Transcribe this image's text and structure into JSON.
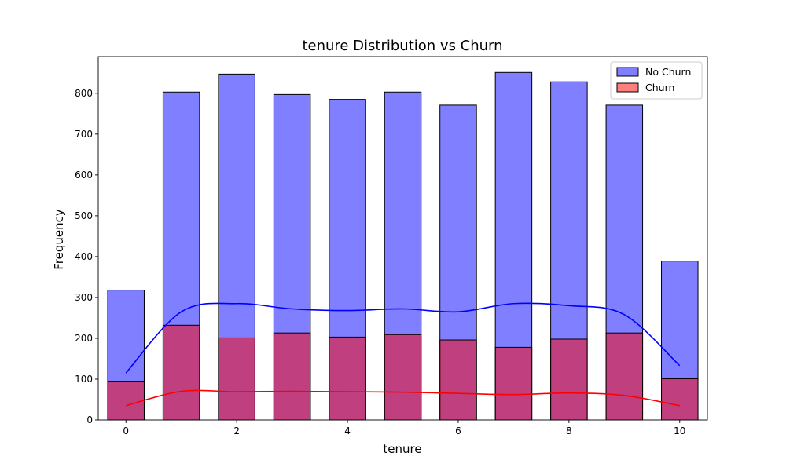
{
  "chart_data": {
    "type": "bar",
    "title": "tenure Distribution vs Churn",
    "xlabel": "tenure",
    "ylabel": "Frequency",
    "xlim": [
      -0.5,
      10.5
    ],
    "ylim": [
      0,
      890
    ],
    "xticks": [
      0,
      2,
      4,
      6,
      8,
      10
    ],
    "yticks": [
      0,
      100,
      200,
      300,
      400,
      500,
      600,
      700,
      800
    ],
    "bins": [
      0,
      1,
      2,
      3,
      4,
      5,
      6,
      7,
      8,
      9,
      10
    ],
    "legend": {
      "position": "top-right"
    },
    "grid": false,
    "series": [
      {
        "name": "No Churn",
        "color": "#0000ff",
        "alpha": 0.5,
        "values": [
          318,
          803,
          847,
          797,
          785,
          803,
          771,
          851,
          828,
          771,
          389
        ],
        "kde": [
          115,
          265,
          285,
          272,
          268,
          272,
          265,
          285,
          280,
          258,
          133
        ]
      },
      {
        "name": "Churn",
        "color": "#ff0000",
        "alpha": 0.5,
        "values": [
          95,
          232,
          201,
          213,
          203,
          209,
          196,
          178,
          198,
          213,
          101
        ],
        "kde": [
          35,
          70,
          69,
          70,
          69,
          68,
          65,
          62,
          66,
          60,
          35
        ]
      }
    ]
  }
}
